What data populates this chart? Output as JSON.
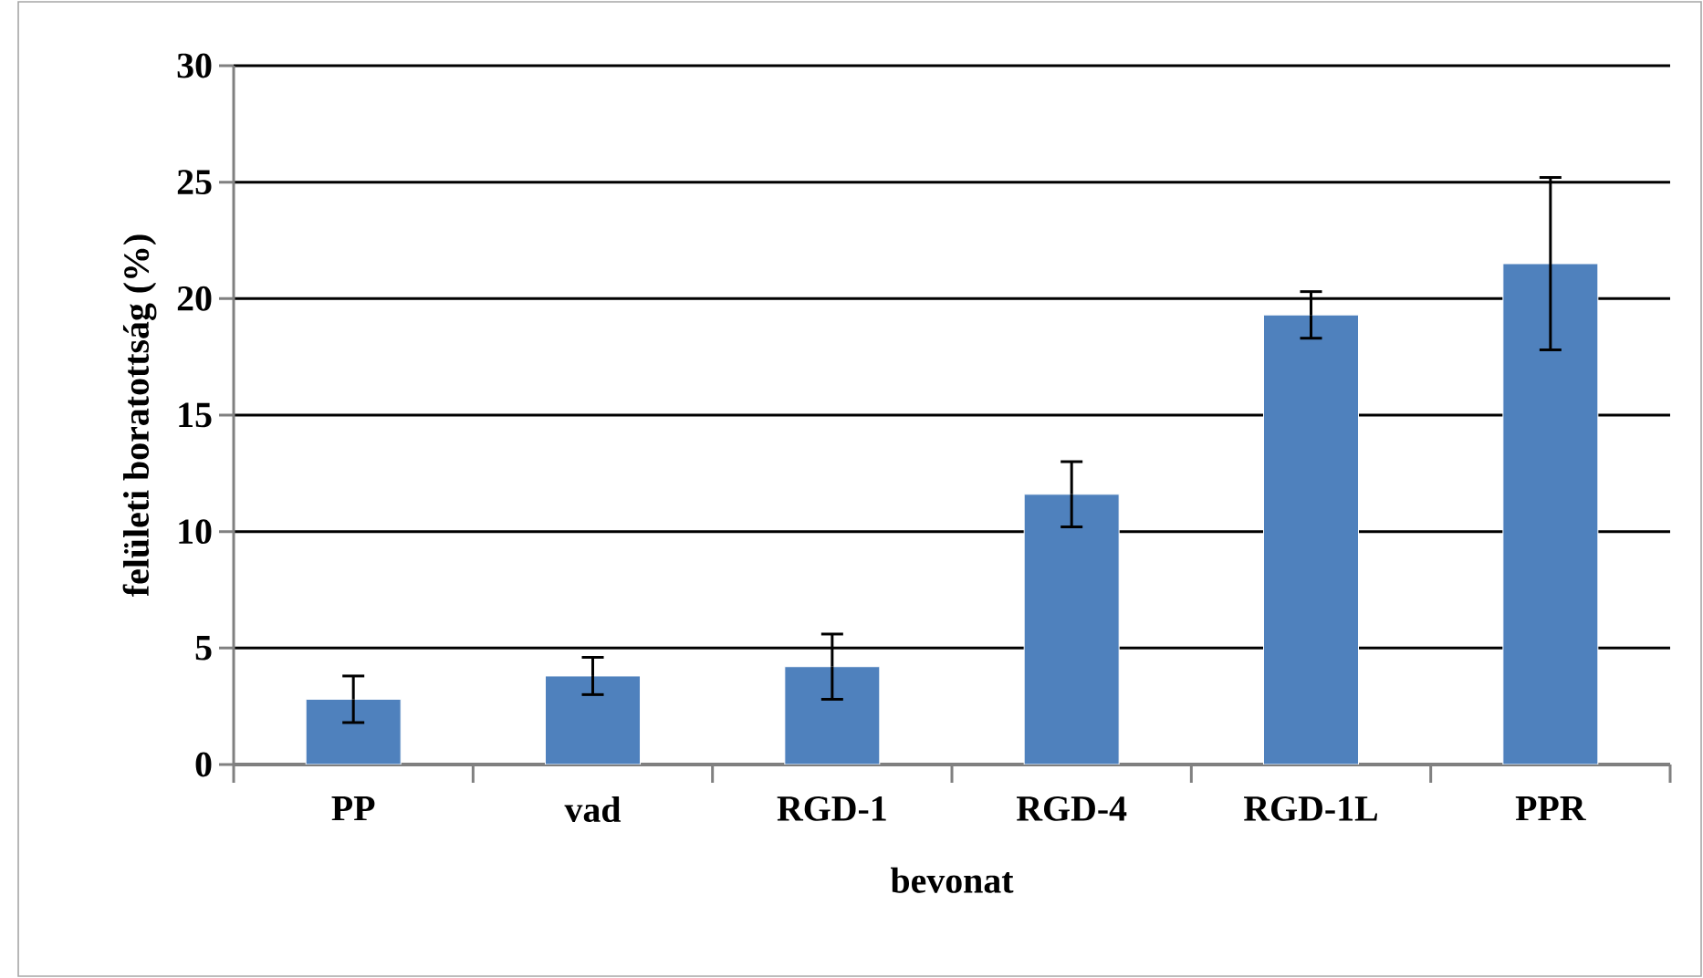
{
  "chart_data": {
    "type": "bar",
    "xlabel": "bevonat",
    "ylabel": "felületi boratottság (%)",
    "categories": [
      "PP",
      "vad",
      "RGD-1",
      "RGD-4",
      "RGD-1L",
      "PPR"
    ],
    "values": [
      2.8,
      3.8,
      4.2,
      11.6,
      19.3,
      21.5
    ],
    "errors": [
      1.0,
      0.8,
      1.4,
      1.4,
      1.0,
      3.7
    ],
    "color": "#4f81bd",
    "ylim": [
      0,
      30
    ],
    "yticks": [
      0,
      5,
      10,
      15,
      20,
      25,
      30
    ],
    "grid": "y"
  }
}
